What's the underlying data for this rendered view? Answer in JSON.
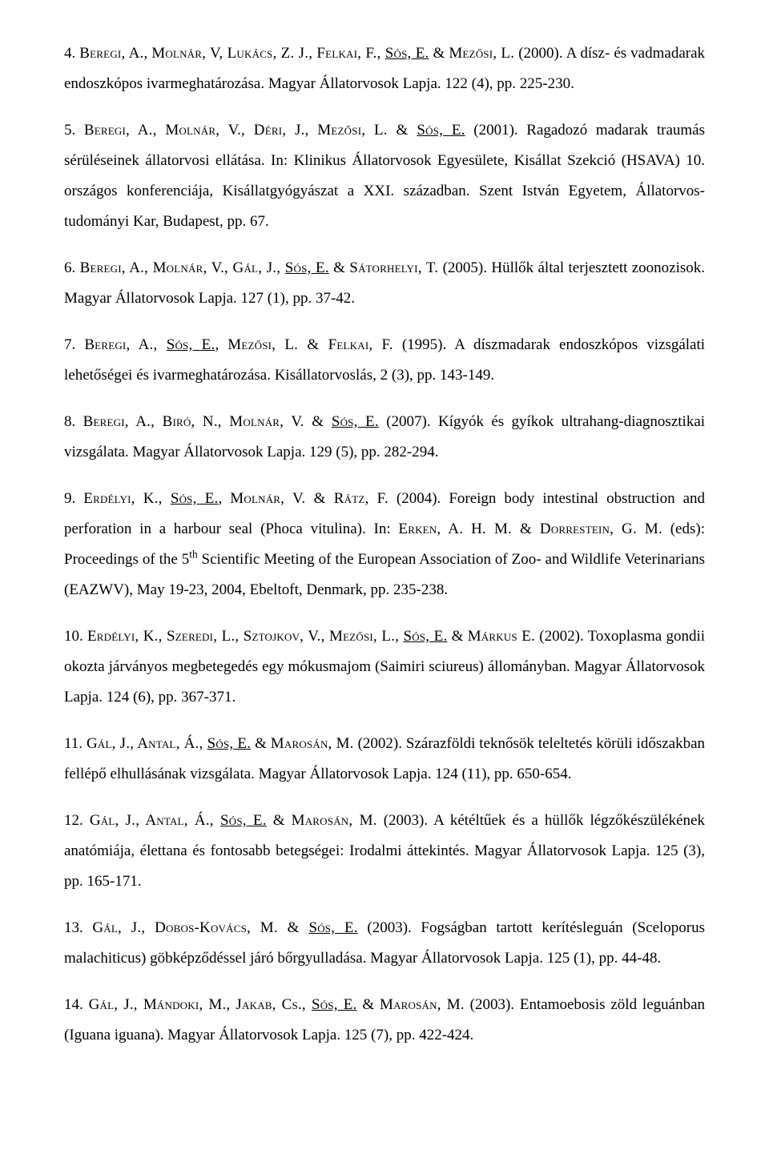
{
  "page": {
    "background_color": "#ffffff",
    "text_color": "#000000",
    "font_family": "Times New Roman",
    "base_font_size_pt": 14,
    "line_height": 2.0,
    "text_align": "justify"
  },
  "references": [
    {
      "num": "4.",
      "authors_sc": [
        {
          "text": "Beregi, A.",
          "underline": false
        },
        {
          "text": ", ",
          "plain": true
        },
        {
          "text": "Molnár, V, Lukács, Z. J., Felkai, F., ",
          "underline": false
        },
        {
          "text": "Sós, E.",
          "underline": true
        },
        {
          "text": " & ",
          "plain": true
        },
        {
          "text": "Mezősi, L.",
          "underline": false
        }
      ],
      "year": "(2000).",
      "title": "A dísz- és vadmadarak endoszkópos ivarmeghatározása. Magyar Állatorvosok Lapja. 122 (4), pp. 225-230."
    },
    {
      "num": "5.",
      "authors_sc": [
        {
          "text": "Beregi, A., Molnár, V., Déri, J., Mezősi, L. & ",
          "underline": false
        },
        {
          "text": "Sós, E.",
          "underline": true
        }
      ],
      "year": "(2001).",
      "title": "Ragadozó madarak traumás sérüléseinek állatorvosi ellátása. In: Klinikus Állatorvosok Egyesülete, Kisállat Szekció (HSAVA) 10. országos konferenciája, Kisállatgyógyászat a XXI. században. Szent István Egyetem, Állatorvos-tudományi Kar, Budapest, pp. 67."
    },
    {
      "num": "6.",
      "authors_sc": [
        {
          "text": "Beregi, A., Molnár, V., Gál, J., ",
          "underline": false
        },
        {
          "text": "Sós, E.",
          "underline": true
        },
        {
          "text": " & ",
          "plain": true
        },
        {
          "text": "Sátorhelyi, T.",
          "underline": false
        }
      ],
      "year": "(2005).",
      "title": "Hüllők által terjesztett zoonozisok. Magyar Állatorvosok Lapja. 127 (1), pp. 37-42."
    },
    {
      "num": "7.",
      "authors_sc": [
        {
          "text": "Beregi, A., ",
          "underline": false
        },
        {
          "text": "Sós, E.",
          "underline": true
        },
        {
          "text": ", ",
          "plain": true
        },
        {
          "text": "Mezősi, L. & Felkai, F.",
          "underline": false
        }
      ],
      "year": "(1995).",
      "title": "A díszmadarak endoszkópos vizsgálati lehetőségei és ivarmeghatározása. Kisállatorvoslás, 2 (3), pp. 143-149."
    },
    {
      "num": "8.",
      "authors_sc": [
        {
          "text": "Beregi, A., Biró, N., Molnár, V. & ",
          "underline": false
        },
        {
          "text": "Sós, E.",
          "underline": true
        }
      ],
      "year": "(2007).",
      "title": "Kígyók és gyíkok ultrahang-diagnosztikai vizsgálata. Magyar Állatorvosok Lapja. 129 (5), pp. 282-294."
    },
    {
      "num": "9.",
      "authors_sc": [
        {
          "text": "Erdélyi, K., ",
          "underline": false
        },
        {
          "text": "Sós, E.",
          "underline": true
        },
        {
          "text": ", ",
          "plain": true
        },
        {
          "text": "Molnár, V. & Rátz, F.",
          "underline": false
        }
      ],
      "year": "(2004).",
      "title_pre": "Foreign body intestinal obstruction and perforation in a harbour seal (Phoca vitulina). In: ",
      "eds_sc": "Erken, A. H. M. & Dorrestein, G. M.",
      "title_post_pre": " (eds): Proceedings of the 5",
      "sup": "th",
      "title_post": " Scientific Meeting of the European Association of Zoo- and Wildlife Veterinarians (EAZWV), May 19-23, 2004, Ebeltoft, Denmark, pp. 235-238."
    },
    {
      "num": "10.",
      "authors_sc": [
        {
          "text": "Erdélyi, K., Szeredi, L., Sztojkov, V., Mezősi, L., ",
          "underline": false
        },
        {
          "text": "Sós, E.",
          "underline": true
        },
        {
          "text": " & ",
          "plain": true
        },
        {
          "text": "Márkus E.",
          "underline": false
        }
      ],
      "year": "(2002).",
      "title": "Toxoplasma gondii okozta járványos megbetegedés egy mókusmajom (Saimiri sciureus) állományban. Magyar Állatorvosok Lapja. 124 (6), pp. 367-371."
    },
    {
      "num": "11.",
      "authors_sc": [
        {
          "text": "Gál, J., Antal, Á., ",
          "underline": false
        },
        {
          "text": "Sós, E.",
          "underline": true
        },
        {
          "text": " & ",
          "plain": true
        },
        {
          "text": "Marosán, M.",
          "underline": false
        }
      ],
      "year": "(2002).",
      "title": "Szárazföldi teknősök teleltetés körüli időszakban fellépő elhullásának vizsgálata. Magyar Állatorvosok Lapja. 124 (11), pp. 650-654."
    },
    {
      "num": "12.",
      "authors_sc": [
        {
          "text": "Gál, J., Antal, Á., ",
          "underline": false
        },
        {
          "text": "Sós, E.",
          "underline": true
        },
        {
          "text": " & ",
          "plain": true
        },
        {
          "text": "Marosán, M.",
          "underline": false
        }
      ],
      "year": "(2003).",
      "title": "A kétéltűek és a hüllők légzőkészülékének anatómiája, élettana és fontosabb betegségei: Irodalmi áttekintés. Magyar Állatorvosok Lapja. 125 (3), pp. 165-171."
    },
    {
      "num": "13.",
      "authors_sc": [
        {
          "text": "Gál, J., Dobos-Kovács, M. & ",
          "underline": false
        },
        {
          "text": "Sós, E.",
          "underline": true
        }
      ],
      "year": "(2003).",
      "title": "Fogságban tartott kerítésleguán (Sceloporus malachiticus) göbképződéssel járó bőrgyulladása. Magyar Állatorvosok Lapja. 125 (1), pp. 44-48."
    },
    {
      "num": "14.",
      "authors_sc": [
        {
          "text": "Gál, J., Mándoki, M., Jakab, Cs., ",
          "underline": false
        },
        {
          "text": "Sós, E.",
          "underline": true
        },
        {
          "text": " & ",
          "plain": true
        },
        {
          "text": "Marosán, M.",
          "underline": false
        }
      ],
      "year": "(2003).",
      "title": "Entamoebosis zöld leguánban (Iguana iguana). Magyar Állatorvosok Lapja. 125 (7), pp. 422-424."
    }
  ]
}
